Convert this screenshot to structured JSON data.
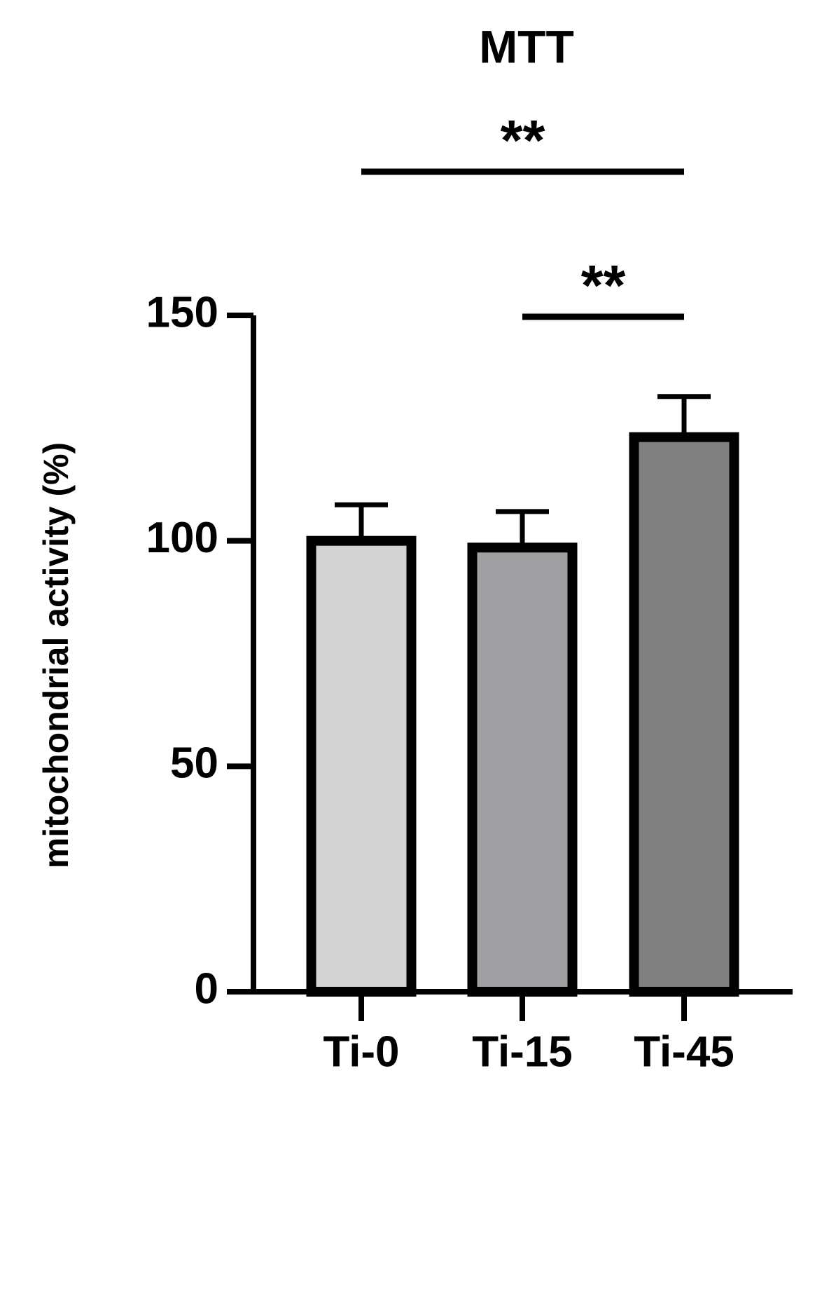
{
  "chart_data": {
    "type": "bar",
    "title": "MTT",
    "y_label": "mitochondrial activity (%)",
    "categories": [
      "Ti-0",
      "Ti-15",
      "Ti-45"
    ],
    "values": [
      100,
      98.5,
      123
    ],
    "errors": [
      8,
      8,
      9
    ],
    "colors": [
      "#d3d3d3",
      "#a0a0a3",
      "#808080"
    ],
    "ylim": [
      0,
      150
    ],
    "yticks": [
      0,
      50,
      100,
      150
    ],
    "grid": false,
    "significance": [
      {
        "label": "**",
        "groups": [
          "Ti-15",
          "Ti-45"
        ]
      },
      {
        "label": "**",
        "groups": [
          "Ti-0",
          "Ti-45"
        ]
      }
    ]
  }
}
